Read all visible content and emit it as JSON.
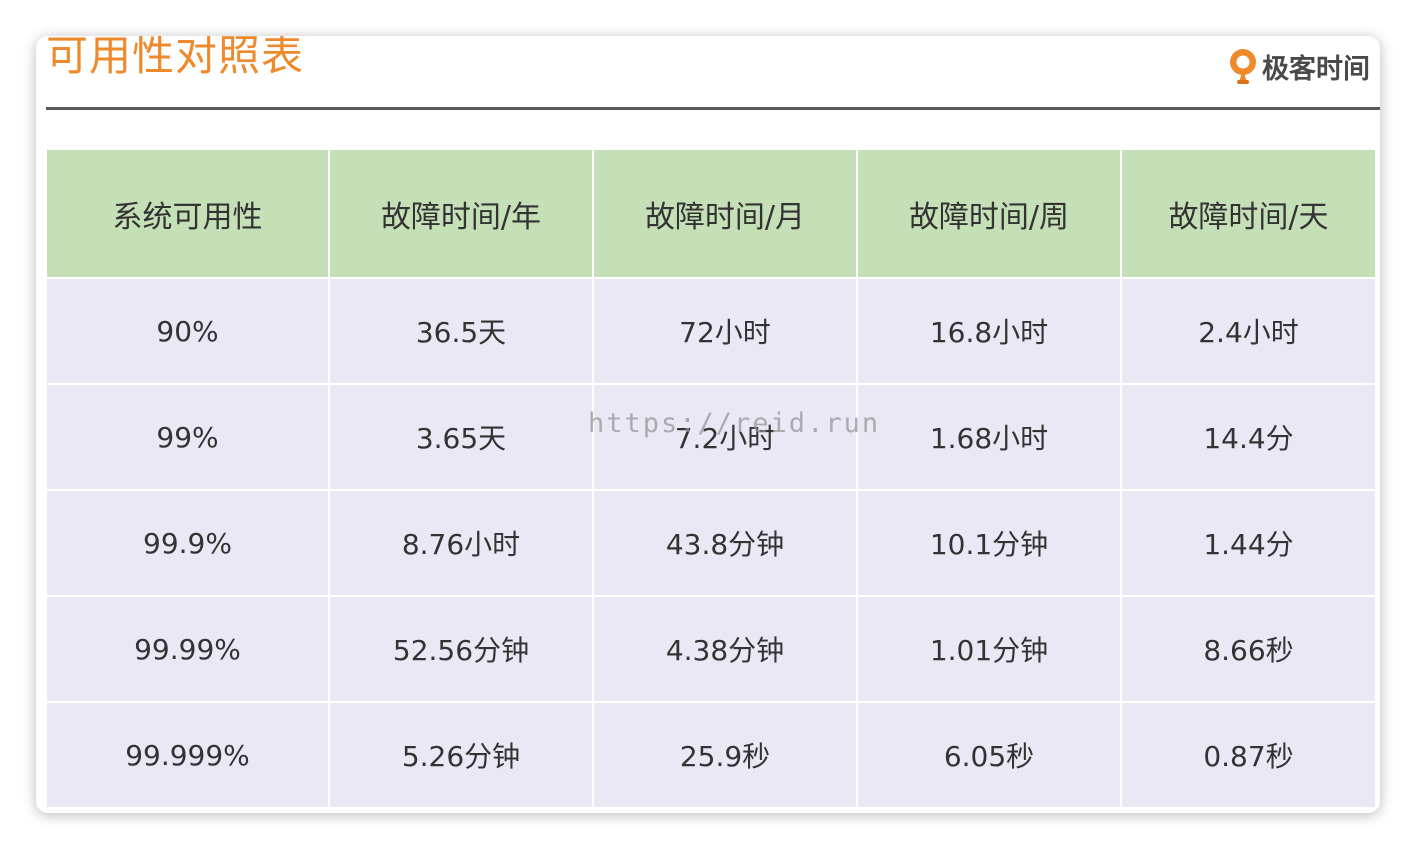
{
  "title": "可用性对照表",
  "logo": {
    "icon": "geekbang-logo-icon",
    "text": "极客时间",
    "color": "#ee8a2c"
  },
  "table": {
    "headers": [
      "系统可用性",
      "故障时间/年",
      "故障时间/月",
      "故障时间/周",
      "故障时间/天"
    ],
    "rows": [
      [
        "90%",
        "36.5天",
        "72小时",
        "16.8小时",
        "2.4小时"
      ],
      [
        "99%",
        "3.65天",
        "7.2小时",
        "1.68小时",
        "14.4分"
      ],
      [
        "99.9%",
        "8.76小时",
        "43.8分钟",
        "10.1分钟",
        "1.44分"
      ],
      [
        "99.99%",
        "52.56分钟",
        "4.38分钟",
        "1.01分钟",
        "8.66秒"
      ],
      [
        "99.999%",
        "5.26分钟",
        "25.9秒",
        "6.05秒",
        "0.87秒"
      ]
    ]
  },
  "watermark": "https://reid.run",
  "colors": {
    "title": "#ee8a2c",
    "header_bg": "#c5dfb6",
    "row_bg": "#ebe8f5",
    "rule": "#5a5a5a"
  }
}
